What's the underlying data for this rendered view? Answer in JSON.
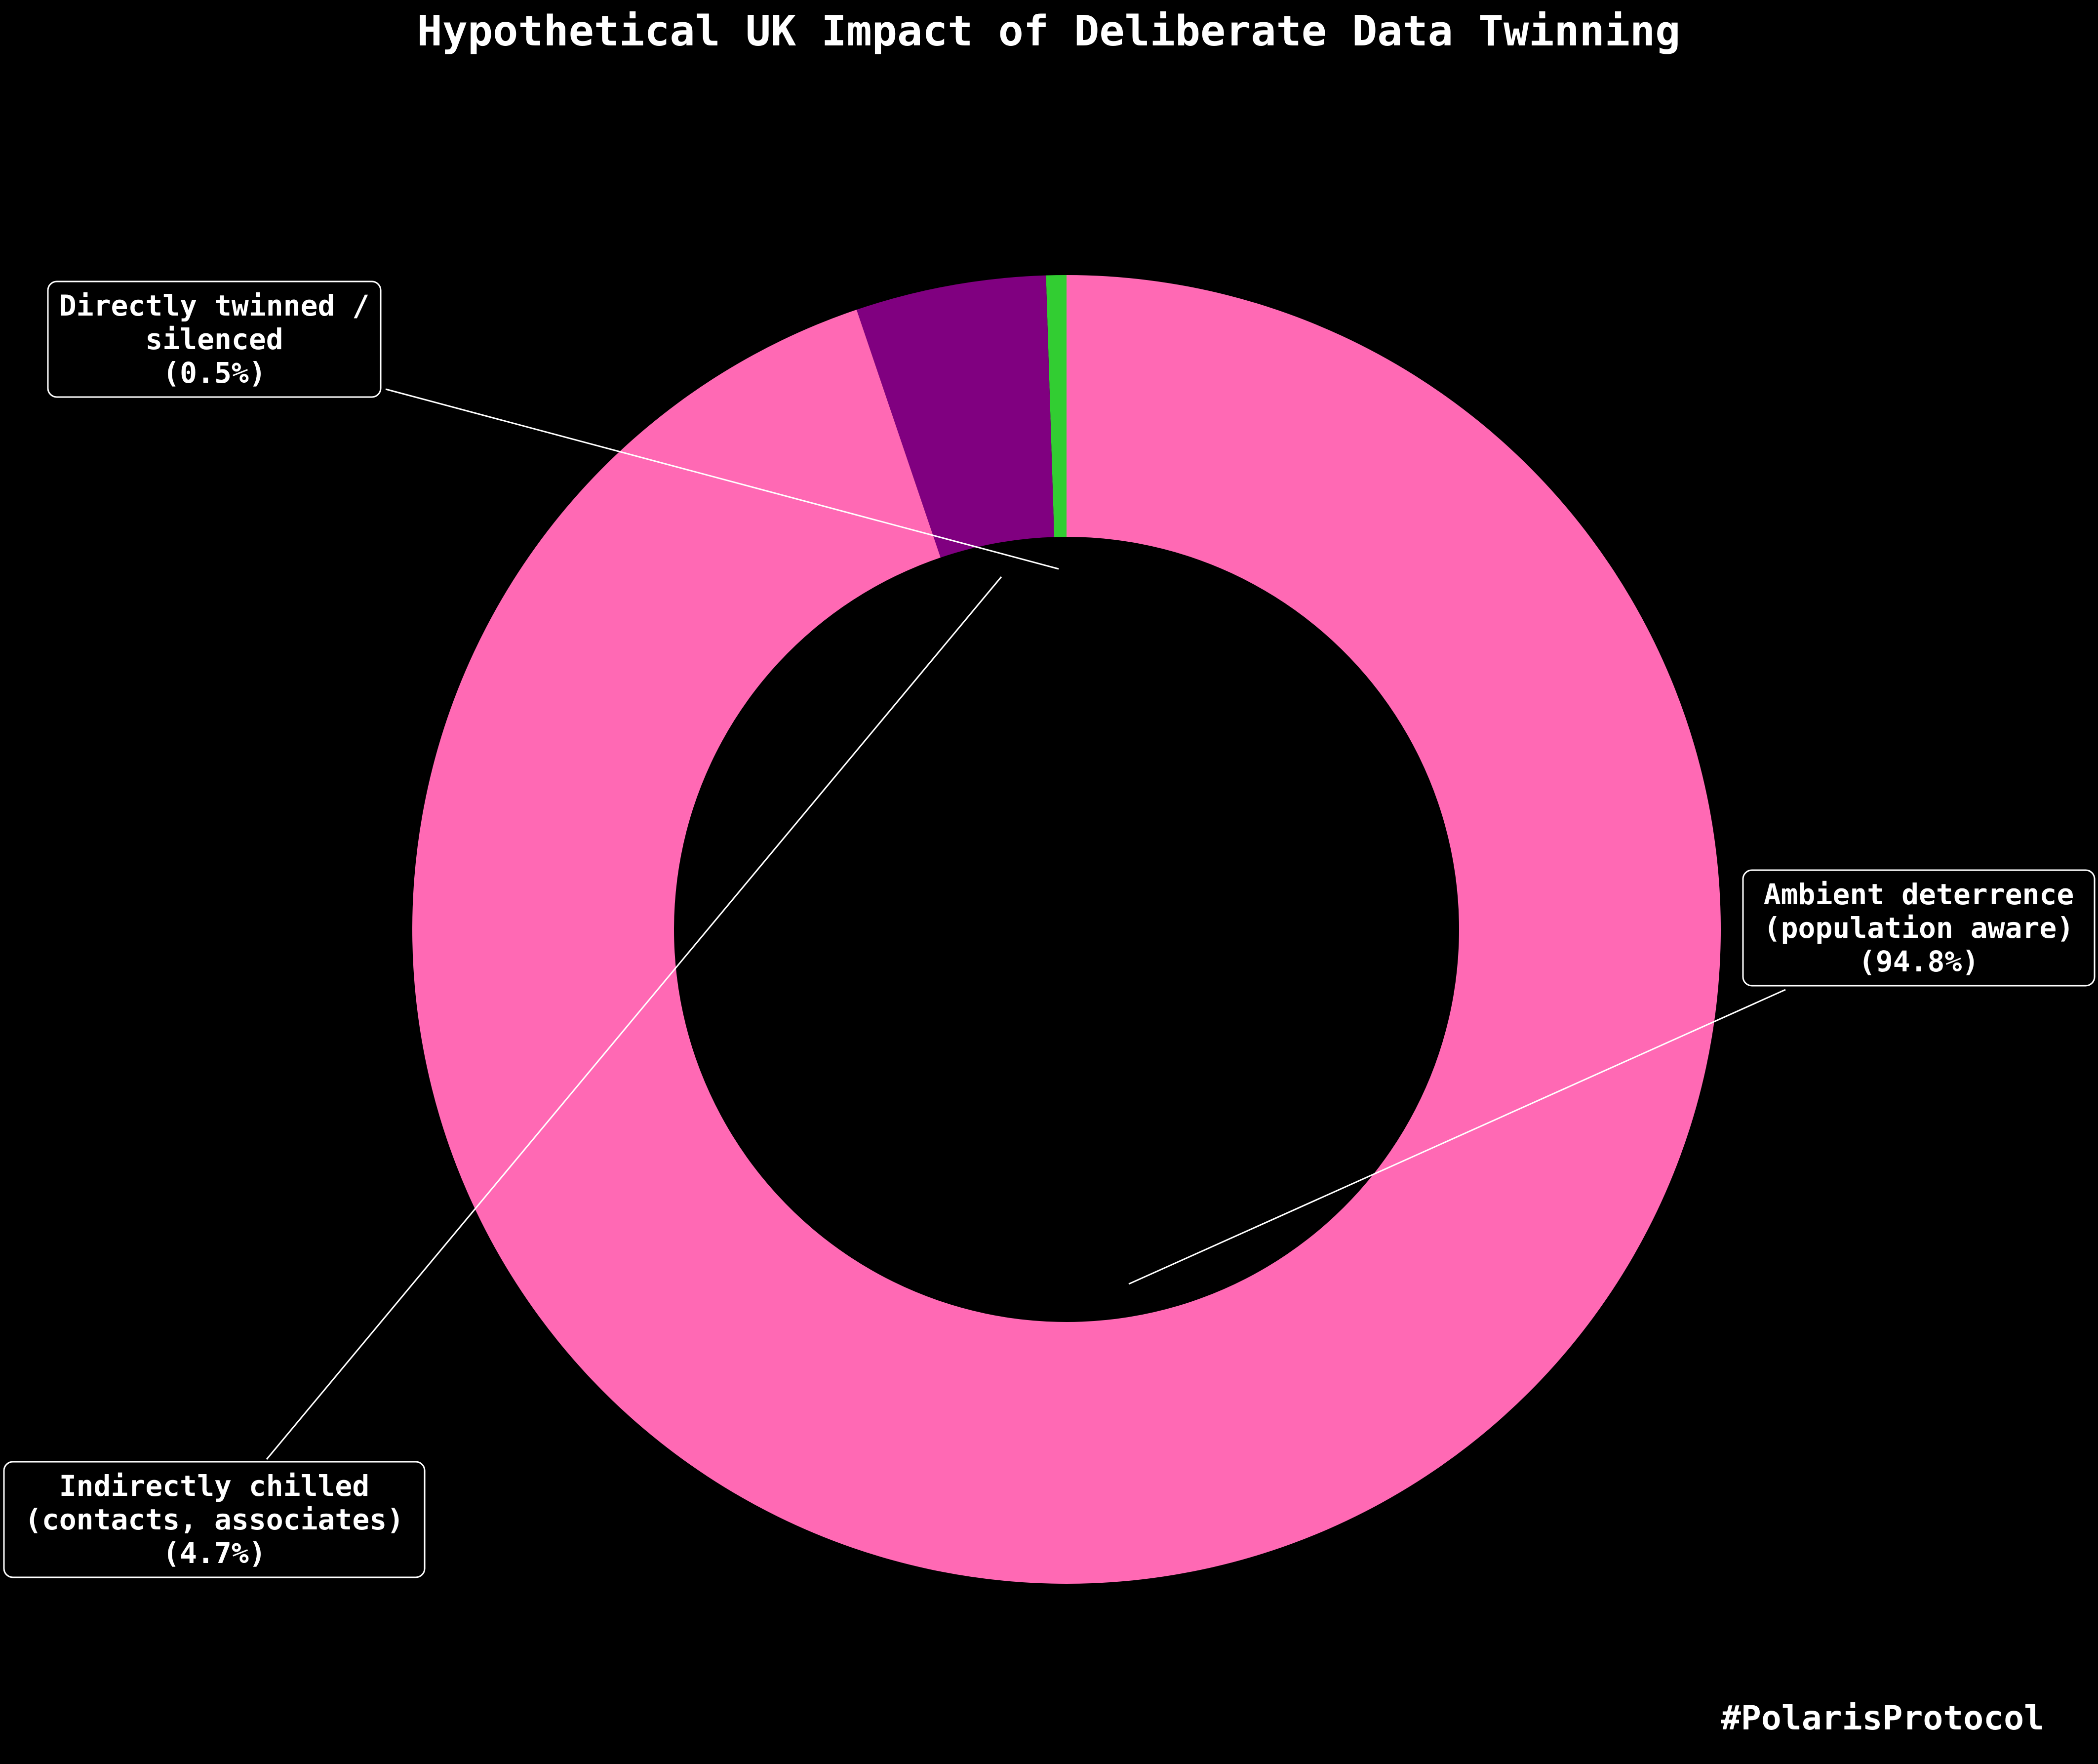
{
  "chart_data": {
    "type": "pie",
    "variant": "donut",
    "title": "Hypothetical UK Impact of Deliberate Data Twinning",
    "start_angle": "12 o'clock",
    "direction": "counter-clockwise",
    "slices": [
      {
        "name": "Directly twinned / silenced",
        "value": 0.5,
        "color": "#32cd32",
        "label_lines": [
          "Directly twinned /",
          "silenced",
          "(0.5%)"
        ]
      },
      {
        "name": "Indirectly chilled (contacts, associates)",
        "value": 4.7,
        "color": "#800080",
        "label_lines": [
          "Indirectly chilled",
          "(contacts, associates)",
          "(4.7%)"
        ]
      },
      {
        "name": "Ambient deterrence (population aware)",
        "value": 94.8,
        "color": "#ff69b4",
        "label_lines": [
          "Ambient deterrence",
          "(population aware)",
          "(94.8%)"
        ]
      }
    ],
    "legend": "none"
  },
  "footer": {
    "hashtag": "#PolarisProtocol"
  },
  "colors": {
    "background": "#000000",
    "text": "#ffffff"
  }
}
